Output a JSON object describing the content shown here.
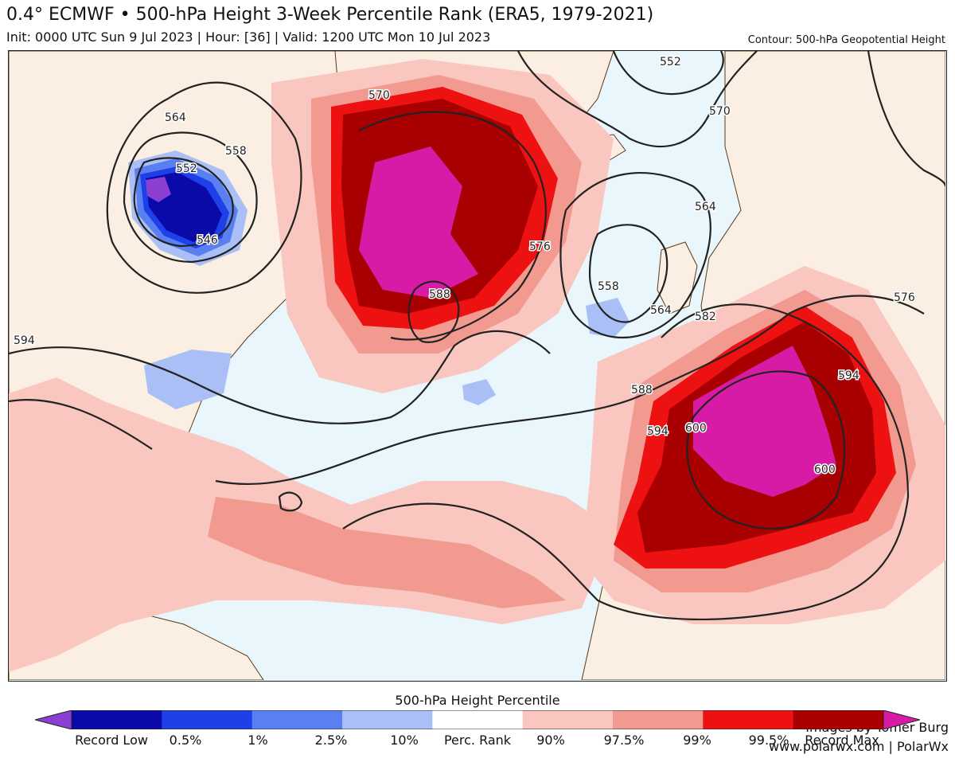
{
  "header": {
    "title": "0.4° ECMWF • 500-hPa Height 3-Week Percentile Rank (ERA5, 1979-2021)",
    "subtitle": "Init: 0000 UTC Sun 9 Jul 2023 | Hour: [36] | Valid: 1200 UTC Mon 10 Jul 2023",
    "contour_note": "Contour: 500-hPa Geopotential Height"
  },
  "credit": {
    "line1": "Images by Tomer Burg",
    "line2": "www.polarwx.com | PolarWx"
  },
  "colorbar": {
    "title": "500-hPa Height Percentile",
    "labels": [
      "Record Low",
      "0.5%",
      "1%",
      "2.5%",
      "10%",
      "Perc. Rank",
      "90%",
      "97.5%",
      "99%",
      "99.5%",
      "Record Max"
    ],
    "colors": [
      "#8a3fd1",
      "#0a0aa8",
      "#1f3fe8",
      "#5a7ff0",
      "#a9bff5",
      "#ffffff",
      "#f9c7c0",
      "#f29a90",
      "#ee1111",
      "#a80000",
      "#d81ba6"
    ]
  },
  "contour_labels": [
    {
      "text": "564"
    },
    {
      "text": "558"
    },
    {
      "text": "552"
    },
    {
      "text": "546"
    },
    {
      "text": "570"
    },
    {
      "text": "588"
    },
    {
      "text": "576"
    },
    {
      "text": "552"
    },
    {
      "text": "570"
    },
    {
      "text": "564"
    },
    {
      "text": "558"
    },
    {
      "text": "564"
    },
    {
      "text": "588"
    },
    {
      "text": "594"
    },
    {
      "text": "600"
    },
    {
      "text": "600"
    },
    {
      "text": "594"
    },
    {
      "text": "594"
    },
    {
      "text": "582"
    },
    {
      "text": "576"
    }
  ],
  "colors": {
    "land": "#fbeee2",
    "ocean_low_anomaly": "#e9f6fb",
    "pos_90": "#f9c7c0",
    "pos_975": "#f29a90",
    "pos_99": "#ee1111",
    "pos_995": "#a80000",
    "record_max": "#d81ba6",
    "neg_10": "#a9bff5",
    "neg_25": "#5a7ff0",
    "neg_1": "#1f3fe8",
    "neg_05": "#0a0aa8",
    "record_low": "#8a3fd1"
  }
}
